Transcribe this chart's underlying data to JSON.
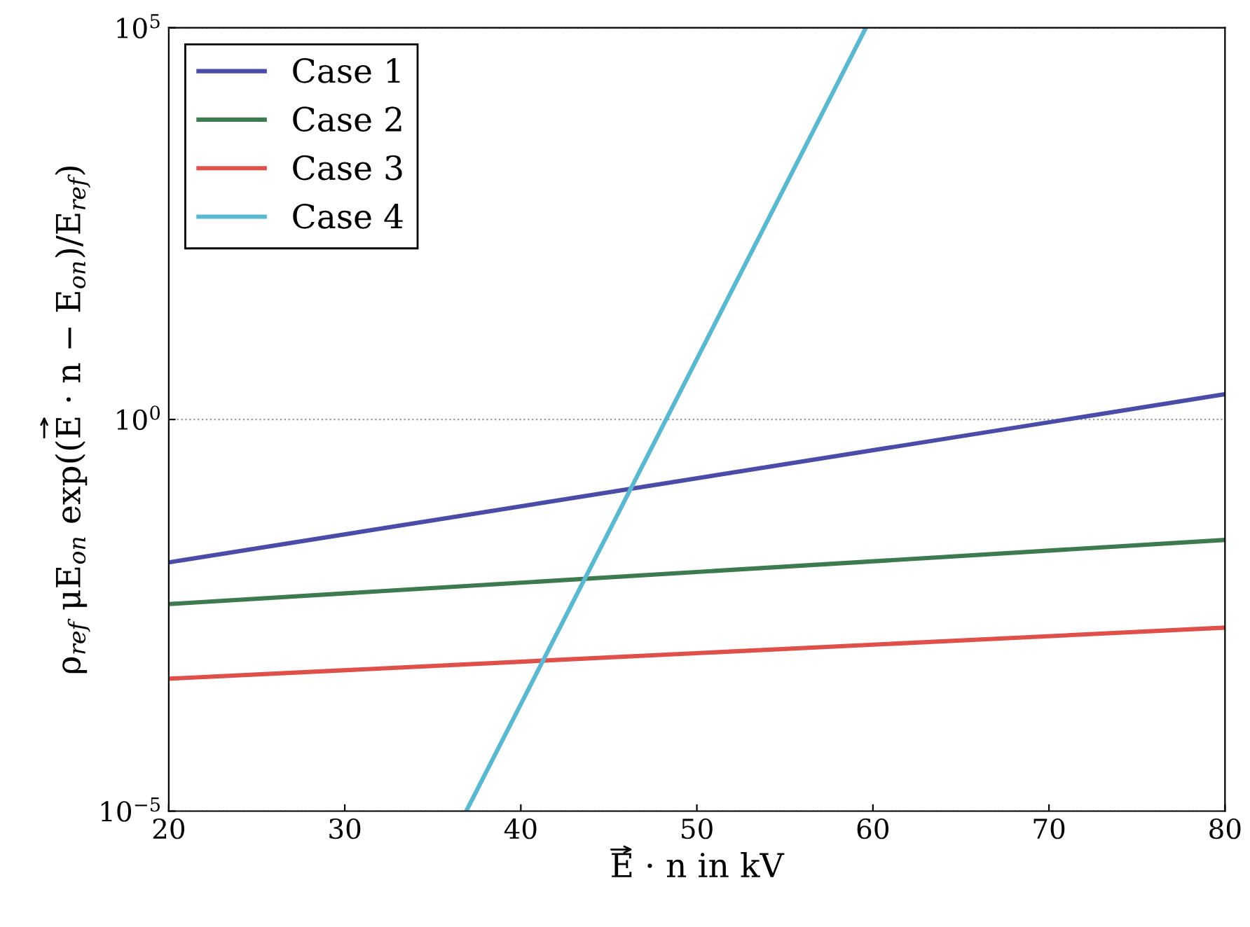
{
  "chart_data": {
    "type": "line",
    "xlabel": "E · n in kV",
    "ylabel": "ρ$_{ref}$ μE$_{on}$ exp((E · n − E$_{on}$)/E$_{ref}$)",
    "series": [
      {
        "name": "Case 1",
        "color": "#4b4ba8",
        "x": [
          20,
          80
        ],
        "values": [
          0.015,
          2.1
        ]
      },
      {
        "name": "Case 2",
        "color": "#3d7a4f",
        "x": [
          20,
          80
        ],
        "values": [
          0.0044,
          0.029
        ]
      },
      {
        "name": "Case 3",
        "color": "#e0504a",
        "x": [
          20,
          80
        ],
        "values": [
          0.00049,
          0.0022
        ]
      },
      {
        "name": "Case 4",
        "color": "#5ab8d0",
        "x": [
          36.9,
          59.6
        ],
        "values": [
          1e-05,
          100000
        ]
      }
    ],
    "log": "y",
    "xlim": [
      20,
      80
    ],
    "xticks": [
      20,
      30,
      40,
      50,
      60,
      70,
      80
    ],
    "ylim": [
      1e-05,
      100000
    ],
    "yticks": [
      {
        "value": 1e-05,
        "label": "10$^{−5}$"
      },
      {
        "value": 1,
        "label": "10$^{0}$"
      },
      {
        "value": 100000,
        "label": "10$^{5}$"
      }
    ],
    "grid": "y",
    "legend": "top left",
    "line_style": "solid",
    "marker": "none"
  }
}
